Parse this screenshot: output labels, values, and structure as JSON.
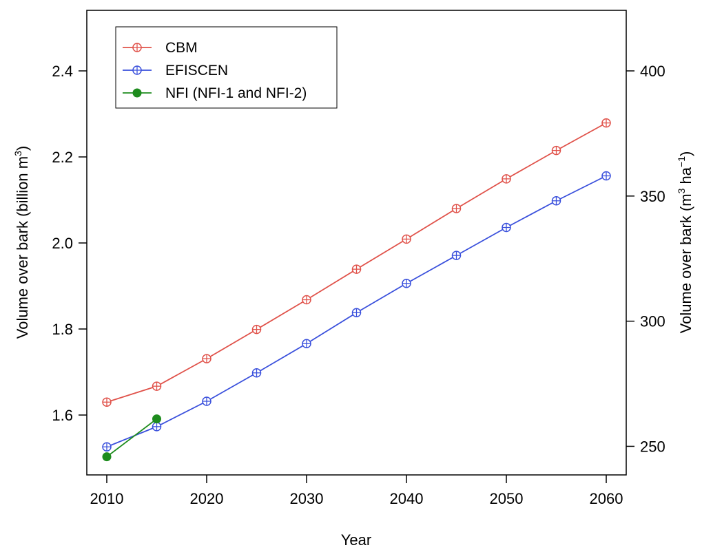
{
  "chart_data": {
    "type": "line",
    "x": [
      2010,
      2015,
      2020,
      2025,
      2030,
      2035,
      2040,
      2045,
      2050,
      2055,
      2060
    ],
    "xlabel": "Year",
    "ylabel": "Volume over bark (billion m",
    "ylabel_sup": "3",
    "ylabel_end": ")",
    "ylabel_right": "Volume over bark (m",
    "ylabel_right_sup1": "3",
    "ylabel_right_mid": " ha",
    "ylabel_right_sup2": "−1",
    "ylabel_right_end": ")",
    "xlim": [
      2008,
      2062
    ],
    "ylim": [
      1.458,
      2.535
    ],
    "xticks": [
      2010,
      2020,
      2030,
      2040,
      2050,
      2060
    ],
    "yticks": [
      1.6,
      1.8,
      2.0,
      2.2,
      2.4
    ],
    "ytick_labels": [
      "1.6",
      "1.8",
      "2.0",
      "2.2",
      "2.4"
    ],
    "yticks_right": [
      250,
      300,
      350,
      400
    ],
    "right_axis_map": {
      "left": [
        1.6,
        2.4
      ],
      "right": [
        262.5,
        400
      ]
    },
    "grid": false,
    "legend_position": "top-left",
    "series": [
      {
        "name": "CBM",
        "color": "#e0524a",
        "marker": "circle-plus",
        "x": [
          2010,
          2015,
          2020,
          2025,
          2030,
          2035,
          2040,
          2045,
          2050,
          2055,
          2060
        ],
        "values": [
          1.63,
          1.667,
          1.731,
          1.799,
          1.868,
          1.939,
          2.009,
          2.08,
          2.149,
          2.215,
          2.279
        ]
      },
      {
        "name": "EFISCEN",
        "color": "#3a50dc",
        "marker": "circle-plus",
        "x": [
          2010,
          2015,
          2020,
          2025,
          2030,
          2035,
          2040,
          2045,
          2050,
          2055,
          2060
        ],
        "values": [
          1.526,
          1.573,
          1.632,
          1.698,
          1.766,
          1.838,
          1.906,
          1.971,
          2.036,
          2.098,
          2.156
        ]
      },
      {
        "name": "NFI (NFI-1 and NFI-2)",
        "color": "#1e8c1e",
        "marker": "filled-circle",
        "x": [
          2010,
          2015
        ],
        "values": [
          1.503,
          1.591
        ]
      }
    ]
  }
}
